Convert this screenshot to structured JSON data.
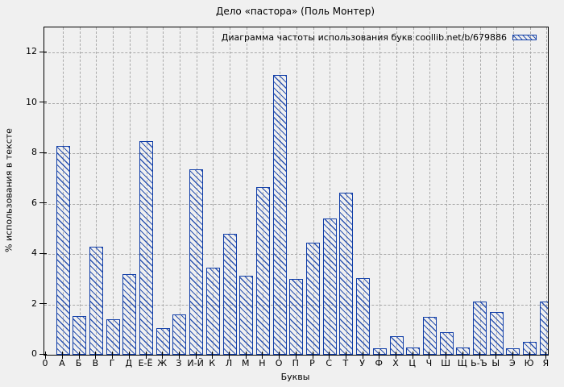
{
  "page": {
    "background_color": "#f0f0f0",
    "grid_color": "#a9a9a9",
    "bar_color": "#123fa8"
  },
  "chart_data": {
    "type": "bar",
    "title": "Дело «пастора» (Поль Монтер)",
    "legend_label": "Диаграмма частоты использования букв coollib.net/b/679886",
    "legend_position": "top-right",
    "xlabel": "Буквы",
    "ylabel": "% использования в тексте",
    "ylim": [
      0,
      13
    ],
    "yticks": [
      0,
      2,
      4,
      6,
      8,
      10,
      12
    ],
    "x_origin_label": "0",
    "grid": true,
    "bar_style": "blue diagonal hatch, hollow",
    "categories": [
      "А",
      "Б",
      "В",
      "Г",
      "Д",
      "Е-Ё",
      "Ж",
      "З",
      "И-Й",
      "К",
      "Л",
      "М",
      "Н",
      "О",
      "П",
      "Р",
      "С",
      "Т",
      "У",
      "Ф",
      "Х",
      "Ц",
      "Ч",
      "Ш",
      "Щ",
      "Ь-Ъ",
      "Ы",
      "Э",
      "Ю",
      "Я"
    ],
    "values": [
      8.3,
      1.55,
      4.3,
      1.4,
      3.2,
      8.5,
      1.05,
      1.6,
      7.35,
      3.45,
      4.8,
      3.15,
      6.65,
      11.1,
      3.0,
      4.45,
      5.4,
      6.45,
      3.05,
      0.25,
      0.75,
      0.3,
      1.5,
      0.9,
      0.3,
      2.1,
      1.7,
      0.25,
      0.5,
      2.1
    ]
  }
}
